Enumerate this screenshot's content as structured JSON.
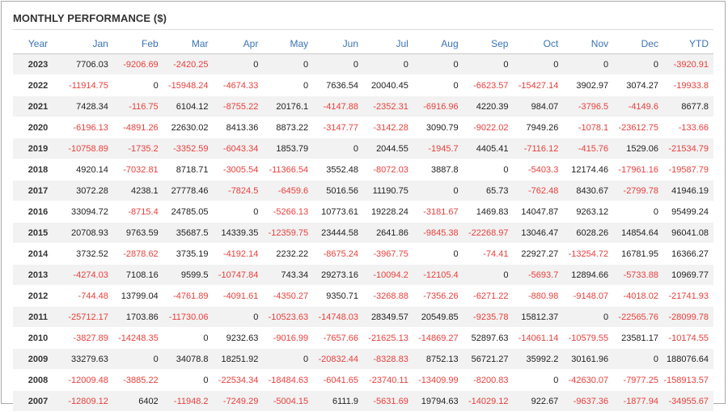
{
  "panel": {
    "title": "MONTHLY PERFORMANCE ($)"
  },
  "table": {
    "columns": [
      "Year",
      "Jan",
      "Feb",
      "Mar",
      "Apr",
      "May",
      "Jun",
      "Jul",
      "Aug",
      "Sep",
      "Oct",
      "Nov",
      "Dec",
      "YTD"
    ],
    "rows": [
      [
        "2023",
        "7706.03",
        "-9206.69",
        "-2420.25",
        "0",
        "0",
        "0",
        "0",
        "0",
        "0",
        "0",
        "0",
        "0",
        "-3920.91"
      ],
      [
        "2022",
        "-11914.75",
        "0",
        "-15948.24",
        "-4674.33",
        "0",
        "7636.54",
        "20040.45",
        "0",
        "-6623.57",
        "-15427.14",
        "3902.97",
        "3074.27",
        "-19933.8"
      ],
      [
        "2021",
        "7428.34",
        "-116.75",
        "6104.12",
        "-8755.22",
        "20176.1",
        "-4147.88",
        "-2352.31",
        "-6916.96",
        "4220.39",
        "984.07",
        "-3796.5",
        "-4149.6",
        "8677.8"
      ],
      [
        "2020",
        "-6196.13",
        "-4891.26",
        "22630.02",
        "8413.36",
        "8873.22",
        "-3147.77",
        "-3142.28",
        "3090.79",
        "-9022.02",
        "7949.26",
        "-1078.1",
        "-23612.75",
        "-133.66"
      ],
      [
        "2019",
        "-10758.89",
        "-1735.2",
        "-3352.59",
        "-6043.34",
        "1853.79",
        "0",
        "2044.55",
        "-1945.7",
        "4405.41",
        "-7116.12",
        "-415.76",
        "1529.06",
        "-21534.79"
      ],
      [
        "2018",
        "4920.14",
        "-7032.81",
        "8718.71",
        "-3005.54",
        "-11366.54",
        "3552.48",
        "-8072.03",
        "3887.8",
        "0",
        "-5403.3",
        "12174.46",
        "-17961.16",
        "-19587.79"
      ],
      [
        "2017",
        "3072.28",
        "4238.1",
        "27778.46",
        "-7824.5",
        "-6459.6",
        "5016.56",
        "11190.75",
        "0",
        "65.73",
        "-762.48",
        "8430.67",
        "-2799.78",
        "41946.19"
      ],
      [
        "2016",
        "33094.72",
        "-8715.4",
        "24785.05",
        "0",
        "-5266.13",
        "10773.61",
        "19228.24",
        "-3181.67",
        "1469.83",
        "14047.87",
        "9263.12",
        "0",
        "95499.24"
      ],
      [
        "2015",
        "20708.93",
        "9763.59",
        "35687.5",
        "14339.35",
        "-12359.75",
        "23444.58",
        "2641.86",
        "-9845.38",
        "-22268.97",
        "13046.47",
        "6028.26",
        "14854.64",
        "96041.08"
      ],
      [
        "2014",
        "3732.52",
        "-2878.62",
        "3735.19",
        "-4192.14",
        "2232.22",
        "-8675.24",
        "-3967.75",
        "0",
        "-74.41",
        "22927.27",
        "-13254.72",
        "16781.95",
        "16366.27"
      ],
      [
        "2013",
        "-4274.03",
        "7108.16",
        "9599.5",
        "-10747.84",
        "743.34",
        "29273.16",
        "-10094.2",
        "-12105.4",
        "0",
        "-5693.7",
        "12894.66",
        "-5733.88",
        "10969.77"
      ],
      [
        "2012",
        "-744.48",
        "13799.04",
        "-4761.89",
        "-4091.61",
        "-4350.27",
        "9350.71",
        "-3268.88",
        "-7356.26",
        "-6271.22",
        "-880.98",
        "-9148.07",
        "-4018.02",
        "-21741.93"
      ],
      [
        "2011",
        "-25712.17",
        "1703.86",
        "-11730.06",
        "0",
        "-10523.63",
        "-14748.03",
        "28349.57",
        "20549.85",
        "-9235.78",
        "15812.37",
        "0",
        "-22565.76",
        "-28099.78"
      ],
      [
        "2010",
        "-3827.89",
        "-14248.35",
        "0",
        "9232.63",
        "-9016.99",
        "-7657.66",
        "-21625.13",
        "-14869.27",
        "52897.63",
        "-14061.14",
        "-10579.55",
        "23581.17",
        "-10174.55"
      ],
      [
        "2009",
        "33279.63",
        "0",
        "34078.8",
        "18251.92",
        "0",
        "-20832.44",
        "-8328.83",
        "8752.13",
        "56721.27",
        "35992.2",
        "30161.96",
        "0",
        "188076.64"
      ],
      [
        "2008",
        "-12009.48",
        "-3885.22",
        "0",
        "-22534.34",
        "-18484.63",
        "-6041.65",
        "-23740.11",
        "-13409.99",
        "-8200.83",
        "0",
        "-42630.07",
        "-7977.25",
        "-158913.57"
      ],
      [
        "2007",
        "-12809.12",
        "6402",
        "-11948.2",
        "-7249.29",
        "-5004.15",
        "6111.9",
        "-5631.69",
        "19794.63",
        "-14029.12",
        "922.67",
        "-9637.36",
        "-1877.94",
        "-34955.67"
      ]
    ]
  }
}
